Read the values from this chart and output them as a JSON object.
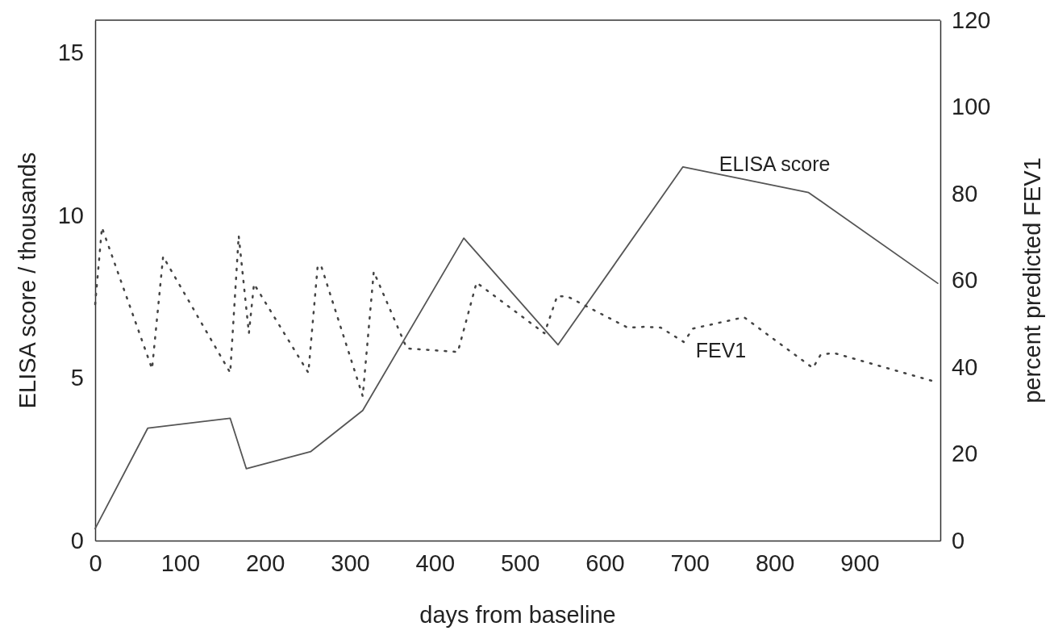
{
  "chart_data": {
    "type": "line",
    "xlabel": "days from baseline",
    "ylabel": "ELISA score / thousands",
    "y2label": "percent predicted FEV1",
    "xlim": [
      0,
      995
    ],
    "xticks": [
      0,
      100,
      200,
      300,
      400,
      500,
      600,
      700,
      800,
      900
    ],
    "ylim": [
      0,
      16
    ],
    "yticks": [
      0,
      5,
      10,
      15
    ],
    "y2lim": [
      0,
      120
    ],
    "y2ticks": [
      0,
      20,
      40,
      60,
      80,
      100,
      120
    ],
    "grid": false,
    "legend": false,
    "marker": "none",
    "series": [
      {
        "name": "ELISA score",
        "color": "#555555",
        "line_style": "solid",
        "x": [
          0,
          62,
          159,
          178,
          254,
          315,
          434,
          545,
          692,
          840,
          992
        ],
        "values": [
          0.37,
          3.46,
          3.76,
          2.21,
          2.74,
          4.0,
          9.3,
          6.02,
          11.49,
          10.7,
          7.91
        ]
      },
      {
        "name": "FEV1",
        "color": "#444444",
        "line_style": "dotted",
        "axis": "y2",
        "x": [
          0,
          8,
          67,
          80,
          159,
          169,
          181,
          187,
          251,
          262,
          266,
          315,
          328,
          367,
          427,
          449,
          529,
          544,
          557,
          627,
          647,
          666,
          693,
          704,
          764,
          845,
          854,
          869,
          986,
          992
        ],
        "values": [
          54.5,
          72.2,
          39.6,
          65.5,
          38.7,
          70.3,
          47.8,
          59.2,
          38.7,
          63.4,
          63.4,
          33.3,
          62,
          44.3,
          43.5,
          59.5,
          47.8,
          56.4,
          56.2,
          49.1,
          49.3,
          49.1,
          45.8,
          48.9,
          51.5,
          39.8,
          42.8,
          43.3,
          36.8,
          36.5
        ]
      }
    ]
  }
}
